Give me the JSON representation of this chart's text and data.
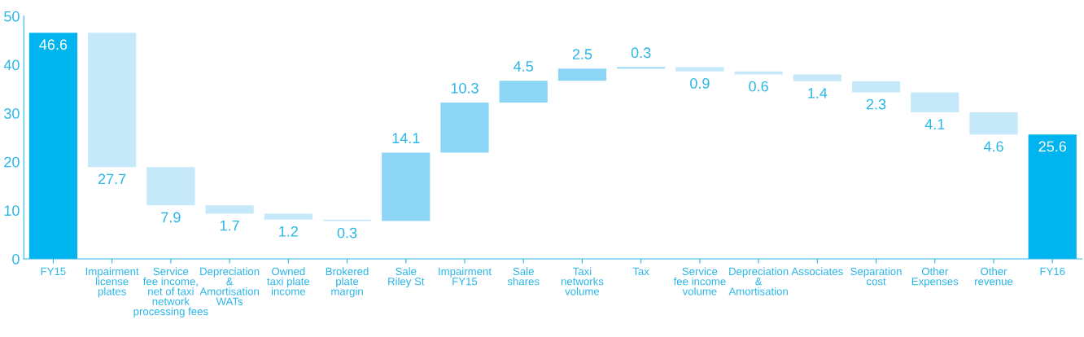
{
  "chart_data": {
    "type": "bar",
    "categories": [
      "FY15",
      "Impairment\nlicense\nplates",
      "Service\nfee income,\nnet of taxi\nnetwork\nprocessing fees",
      "Depreciation\n&\nAmortisation\nWATs",
      "Owned\ntaxi plate\nincome",
      "Brokered\nplate\nmargin",
      "Sale\nRiley St",
      "Impairment\nFY15",
      "Sale\nshares",
      "Taxi\nnetworks\nvolume",
      "Tax",
      "Service\nfee income\nvolume",
      "Depreciation\n&\nAmortisation",
      "Associates",
      "Separation\ncost",
      "Other\nExpenses",
      "Other\nrevenue",
      "FY16"
    ],
    "base": [
      0,
      46.6,
      18.9,
      11.0,
      9.3,
      8.1,
      7.8,
      21.9,
      32.2,
      36.7,
      39.2,
      39.5,
      38.6,
      38.0,
      36.6,
      34.3,
      30.2,
      0
    ],
    "values": [
      46.6,
      -27.7,
      -7.9,
      -1.7,
      -1.2,
      -0.3,
      14.1,
      10.3,
      4.5,
      2.5,
      0.3,
      -0.9,
      -0.6,
      -1.4,
      -2.3,
      -4.1,
      -4.6,
      25.6
    ],
    "value_labels": [
      "46.6",
      "27.7",
      "7.9",
      "1.7",
      "1.2",
      "0.3",
      "14.1",
      "10.3",
      "4.5",
      "2.5",
      "0.3",
      "0.9",
      "0.6",
      "1.4",
      "2.3",
      "4.1",
      "4.6",
      "25.6"
    ],
    "colors": [
      "#00b5ef",
      "#c6e9fa",
      "#c6e9fa",
      "#c6e9fa",
      "#c6e9fa",
      "#c6e9fa",
      "#8dd5f5",
      "#8dd5f5",
      "#8dd5f5",
      "#8dd5f5",
      "#8dd5f5",
      "#c6e9fa",
      "#c6e9fa",
      "#c6e9fa",
      "#c6e9fa",
      "#c6e9fa",
      "#c6e9fa",
      "#00b5ef"
    ],
    "ylim": [
      0,
      50
    ],
    "yticks": [
      0,
      10,
      20,
      30,
      40,
      50
    ],
    "grid": false,
    "legend": false
  }
}
